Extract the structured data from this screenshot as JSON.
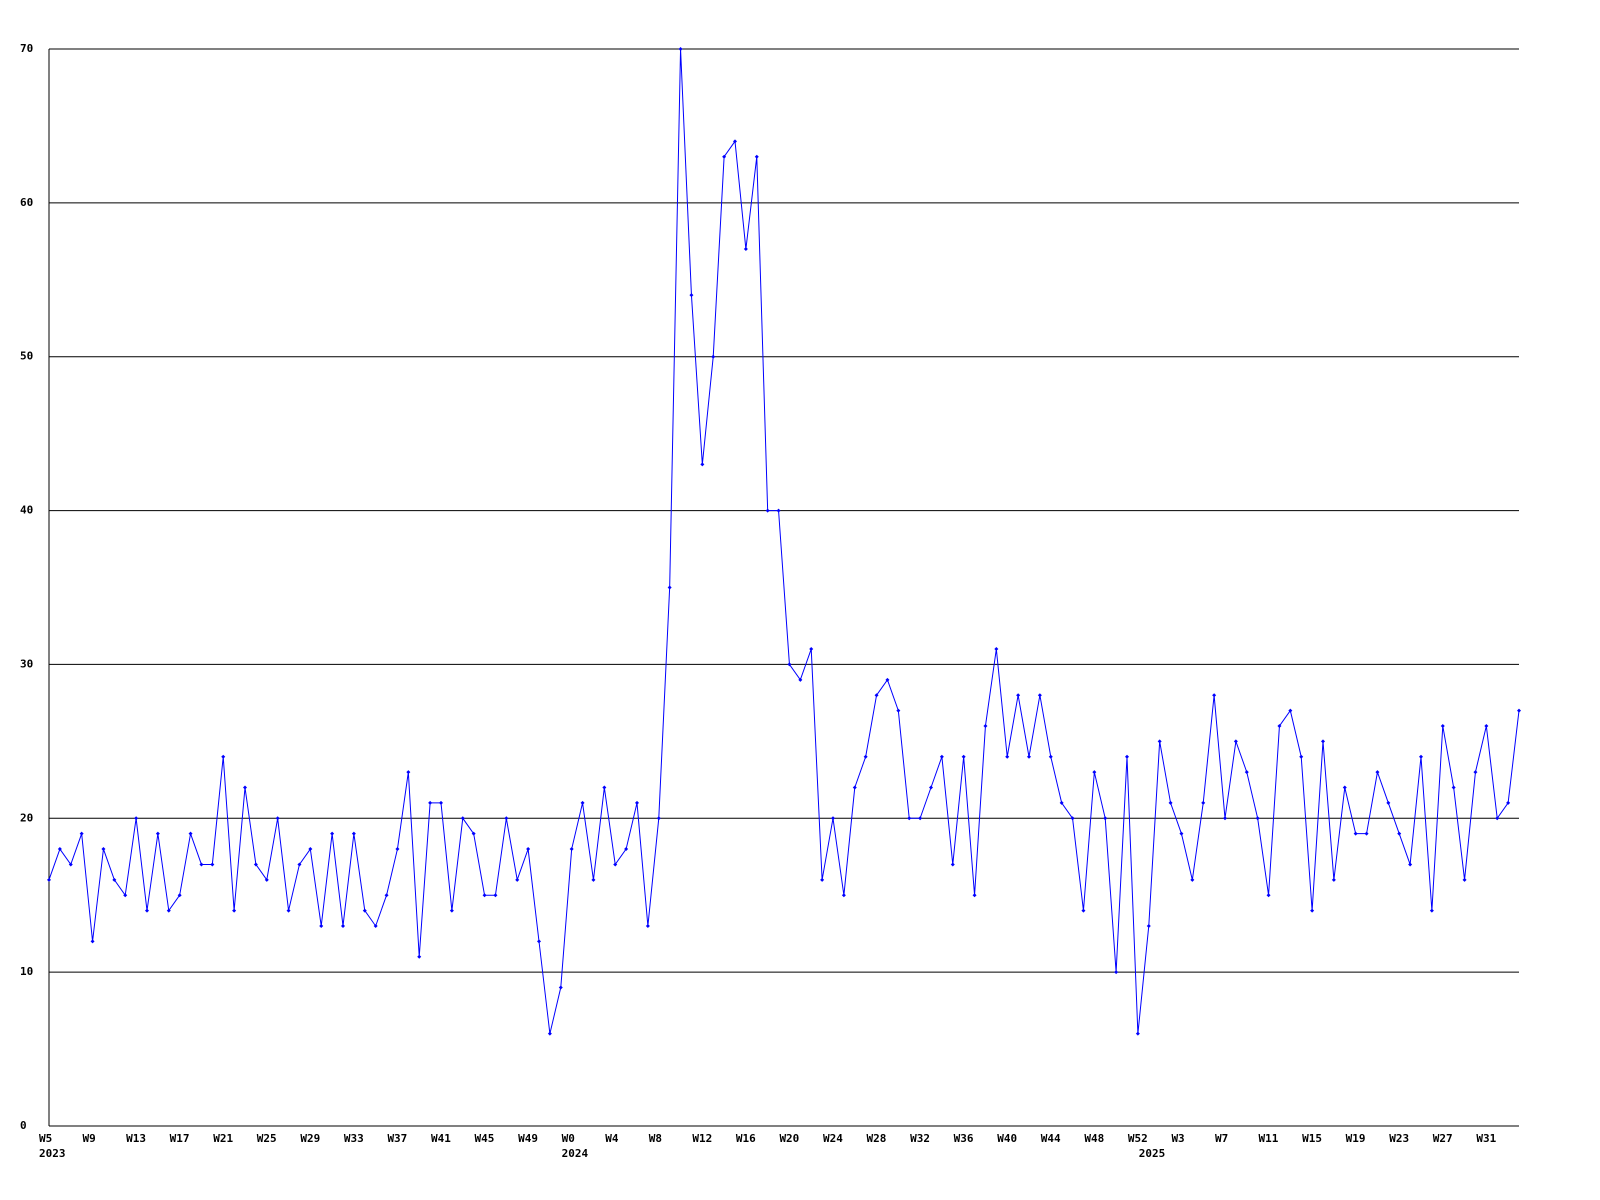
{
  "chart_data": {
    "type": "line",
    "categories": [
      "W5",
      null,
      null,
      null,
      "W9",
      null,
      null,
      null,
      "W13",
      null,
      null,
      null,
      "W17",
      null,
      null,
      null,
      "W21",
      null,
      null,
      null,
      "W25",
      null,
      null,
      null,
      "W29",
      null,
      null,
      null,
      "W33",
      null,
      null,
      null,
      "W37",
      null,
      null,
      null,
      "W41",
      null,
      null,
      null,
      "W45",
      null,
      null,
      null,
      "W49",
      null,
      null,
      null,
      "W0",
      null,
      null,
      null,
      "W4",
      null,
      null,
      null,
      "W8",
      null,
      null,
      null,
      "W12",
      null,
      null,
      null,
      "W16",
      null,
      null,
      null,
      "W20",
      null,
      null,
      null,
      "W24",
      null,
      null,
      null,
      "W28",
      null,
      null,
      null,
      "W32",
      null,
      null,
      null,
      "W36",
      null,
      null,
      null,
      "W40",
      null,
      null,
      null,
      "W44",
      null,
      null,
      null,
      "W48",
      null,
      null,
      null,
      "W52",
      null,
      null,
      null,
      "W3",
      null,
      null,
      null,
      "W7",
      null,
      null,
      null,
      "W11",
      null,
      null,
      null,
      "W15",
      null,
      null,
      null,
      "W19",
      null,
      null,
      null,
      "W23",
      null,
      null,
      null,
      "W27",
      null,
      null,
      null,
      "W31",
      null,
      null,
      null
    ],
    "category_years": [
      "2023",
      null,
      null,
      null,
      null,
      null,
      null,
      null,
      null,
      null,
      null,
      null,
      null,
      null,
      null,
      null,
      null,
      null,
      null,
      null,
      null,
      null,
      null,
      null,
      null,
      null,
      null,
      null,
      null,
      null,
      null,
      null,
      null,
      null,
      null,
      null,
      null,
      null,
      null,
      null,
      null,
      null,
      null,
      null,
      null,
      null,
      null,
      null,
      "2024",
      null,
      null,
      null,
      null,
      null,
      null,
      null,
      null,
      null,
      null,
      null,
      null,
      null,
      null,
      null,
      null,
      null,
      null,
      null,
      null,
      null,
      null,
      null,
      null,
      null,
      null,
      null,
      null,
      null,
      null,
      null,
      null,
      null,
      null,
      null,
      null,
      null,
      null,
      null,
      null,
      null,
      null,
      null,
      null,
      null,
      null,
      null,
      null,
      null,
      null,
      null,
      null,
      "2025",
      null,
      null,
      null,
      null,
      null,
      null,
      null,
      null,
      null,
      null,
      null,
      null,
      null,
      null,
      null,
      null,
      null,
      null,
      null,
      null,
      null,
      null,
      null,
      null,
      null,
      null,
      null,
      null,
      null,
      null,
      null,
      null,
      null,
      null
    ],
    "values": [
      16,
      18,
      17,
      19,
      12,
      18,
      16,
      15,
      20,
      14,
      19,
      14,
      15,
      19,
      17,
      17,
      24,
      14,
      22,
      17,
      16,
      20,
      14,
      17,
      18,
      13,
      19,
      13,
      19,
      14,
      13,
      15,
      18,
      23,
      11,
      21,
      21,
      14,
      20,
      19,
      15,
      15,
      20,
      16,
      18,
      12,
      6,
      9,
      18,
      21,
      16,
      22,
      17,
      18,
      21,
      13,
      20,
      35,
      70,
      54,
      43,
      50,
      63,
      64,
      57,
      63,
      40,
      40,
      30,
      29,
      31,
      16,
      20,
      15,
      22,
      24,
      28,
      29,
      27,
      20,
      20,
      22,
      24,
      17,
      24,
      15,
      26,
      31,
      24,
      28,
      24,
      28,
      24,
      21,
      20,
      14,
      23,
      20,
      10,
      24,
      6,
      13,
      25,
      21,
      19,
      16,
      21,
      28,
      20,
      25,
      23,
      20,
      15,
      26,
      27,
      24,
      14,
      25,
      16,
      22,
      19,
      19,
      23,
      21,
      19,
      17,
      24,
      14,
      26,
      22,
      16,
      23,
      26,
      20,
      21,
      27
    ],
    "color": "#0000ff",
    "ylim": [
      0,
      70
    ],
    "yticks": [
      0,
      10,
      20,
      30,
      40,
      50,
      60,
      70
    ],
    "grid": true
  }
}
